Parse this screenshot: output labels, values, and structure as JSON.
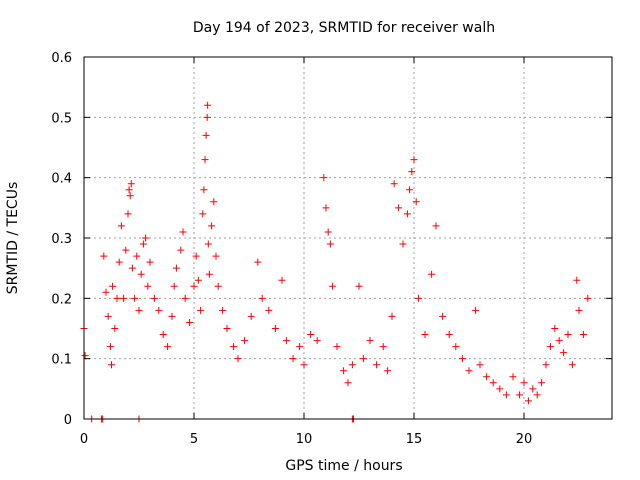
{
  "chart_data": {
    "type": "scatter",
    "title": "Day 194 of 2023, SRMTID for receiver walh",
    "xlabel": "GPS time / hours",
    "ylabel": "SRMTID / TECUs",
    "xlim": [
      0,
      24
    ],
    "ylim": [
      0,
      0.6
    ],
    "x_ticks": [
      0,
      5,
      10,
      15,
      20
    ],
    "x_tick_labels": [
      "0",
      "5",
      "10",
      "15",
      "20"
    ],
    "y_ticks": [
      0,
      0.1,
      0.2,
      0.3,
      0.4,
      0.5,
      0.6
    ],
    "y_tick_labels": [
      "0",
      "0.1",
      "0.2",
      "0.3",
      "0.4",
      "0.5",
      "0.6"
    ],
    "grid": true,
    "marker": "plus",
    "color": "#ff0000",
    "series": [
      {
        "name": "SRMTID",
        "points": [
          [
            0.0,
            0.15
          ],
          [
            0.05,
            0.105
          ],
          [
            0.35,
            0.0
          ],
          [
            0.8,
            0.0
          ],
          [
            0.85,
            0.0
          ],
          [
            2.5,
            0.0
          ],
          [
            12.2,
            0.0
          ],
          [
            12.25,
            0.0
          ],
          [
            0.9,
            0.27
          ],
          [
            1.0,
            0.21
          ],
          [
            1.1,
            0.17
          ],
          [
            1.2,
            0.12
          ],
          [
            1.25,
            0.09
          ],
          [
            1.3,
            0.22
          ],
          [
            1.4,
            0.15
          ],
          [
            1.5,
            0.2
          ],
          [
            1.6,
            0.26
          ],
          [
            1.7,
            0.32
          ],
          [
            1.8,
            0.2
          ],
          [
            1.9,
            0.28
          ],
          [
            2.0,
            0.34
          ],
          [
            2.05,
            0.38
          ],
          [
            2.1,
            0.37
          ],
          [
            2.15,
            0.39
          ],
          [
            2.2,
            0.25
          ],
          [
            2.3,
            0.2
          ],
          [
            2.4,
            0.27
          ],
          [
            2.5,
            0.18
          ],
          [
            2.6,
            0.24
          ],
          [
            2.7,
            0.29
          ],
          [
            2.8,
            0.3
          ],
          [
            2.9,
            0.22
          ],
          [
            3.0,
            0.26
          ],
          [
            3.2,
            0.2
          ],
          [
            3.4,
            0.18
          ],
          [
            3.6,
            0.14
          ],
          [
            3.8,
            0.12
          ],
          [
            4.0,
            0.17
          ],
          [
            4.1,
            0.22
          ],
          [
            4.2,
            0.25
          ],
          [
            4.4,
            0.28
          ],
          [
            4.5,
            0.31
          ],
          [
            4.6,
            0.2
          ],
          [
            4.8,
            0.16
          ],
          [
            5.0,
            0.22
          ],
          [
            5.1,
            0.27
          ],
          [
            5.2,
            0.23
          ],
          [
            5.3,
            0.18
          ],
          [
            5.4,
            0.34
          ],
          [
            5.45,
            0.38
          ],
          [
            5.5,
            0.43
          ],
          [
            5.55,
            0.47
          ],
          [
            5.6,
            0.5
          ],
          [
            5.62,
            0.52
          ],
          [
            5.65,
            0.29
          ],
          [
            5.7,
            0.24
          ],
          [
            5.8,
            0.32
          ],
          [
            5.9,
            0.36
          ],
          [
            6.0,
            0.27
          ],
          [
            6.1,
            0.22
          ],
          [
            6.3,
            0.18
          ],
          [
            6.5,
            0.15
          ],
          [
            6.8,
            0.12
          ],
          [
            7.0,
            0.1
          ],
          [
            7.3,
            0.13
          ],
          [
            7.6,
            0.17
          ],
          [
            7.9,
            0.26
          ],
          [
            8.1,
            0.2
          ],
          [
            8.4,
            0.18
          ],
          [
            8.7,
            0.15
          ],
          [
            9.0,
            0.23
          ],
          [
            9.2,
            0.13
          ],
          [
            9.5,
            0.1
          ],
          [
            9.8,
            0.12
          ],
          [
            10.0,
            0.09
          ],
          [
            10.3,
            0.14
          ],
          [
            10.6,
            0.13
          ],
          [
            10.9,
            0.4
          ],
          [
            11.0,
            0.35
          ],
          [
            11.1,
            0.31
          ],
          [
            11.2,
            0.29
          ],
          [
            11.3,
            0.22
          ],
          [
            11.5,
            0.12
          ],
          [
            11.8,
            0.08
          ],
          [
            12.0,
            0.06
          ],
          [
            12.2,
            0.09
          ],
          [
            12.5,
            0.22
          ],
          [
            12.7,
            0.1
          ],
          [
            13.0,
            0.13
          ],
          [
            13.3,
            0.09
          ],
          [
            13.6,
            0.12
          ],
          [
            13.8,
            0.08
          ],
          [
            14.0,
            0.17
          ],
          [
            14.1,
            0.39
          ],
          [
            14.3,
            0.35
          ],
          [
            14.5,
            0.29
          ],
          [
            14.7,
            0.34
          ],
          [
            14.8,
            0.38
          ],
          [
            14.9,
            0.41
          ],
          [
            15.0,
            0.43
          ],
          [
            15.1,
            0.36
          ],
          [
            15.2,
            0.2
          ],
          [
            15.5,
            0.14
          ],
          [
            15.8,
            0.24
          ],
          [
            16.0,
            0.32
          ],
          [
            16.3,
            0.17
          ],
          [
            16.6,
            0.14
          ],
          [
            16.9,
            0.12
          ],
          [
            17.2,
            0.1
          ],
          [
            17.5,
            0.08
          ],
          [
            17.8,
            0.18
          ],
          [
            18.0,
            0.09
          ],
          [
            18.3,
            0.07
          ],
          [
            18.6,
            0.06
          ],
          [
            18.9,
            0.05
          ],
          [
            19.2,
            0.04
          ],
          [
            19.5,
            0.07
          ],
          [
            19.8,
            0.04
          ],
          [
            20.0,
            0.06
          ],
          [
            20.2,
            0.03
          ],
          [
            20.4,
            0.05
          ],
          [
            20.6,
            0.04
          ],
          [
            20.8,
            0.06
          ],
          [
            21.0,
            0.09
          ],
          [
            21.2,
            0.12
          ],
          [
            21.4,
            0.15
          ],
          [
            21.6,
            0.13
          ],
          [
            21.8,
            0.11
          ],
          [
            22.0,
            0.14
          ],
          [
            22.2,
            0.09
          ],
          [
            22.4,
            0.23
          ],
          [
            22.5,
            0.18
          ],
          [
            22.7,
            0.14
          ],
          [
            22.9,
            0.2
          ]
        ]
      }
    ]
  }
}
